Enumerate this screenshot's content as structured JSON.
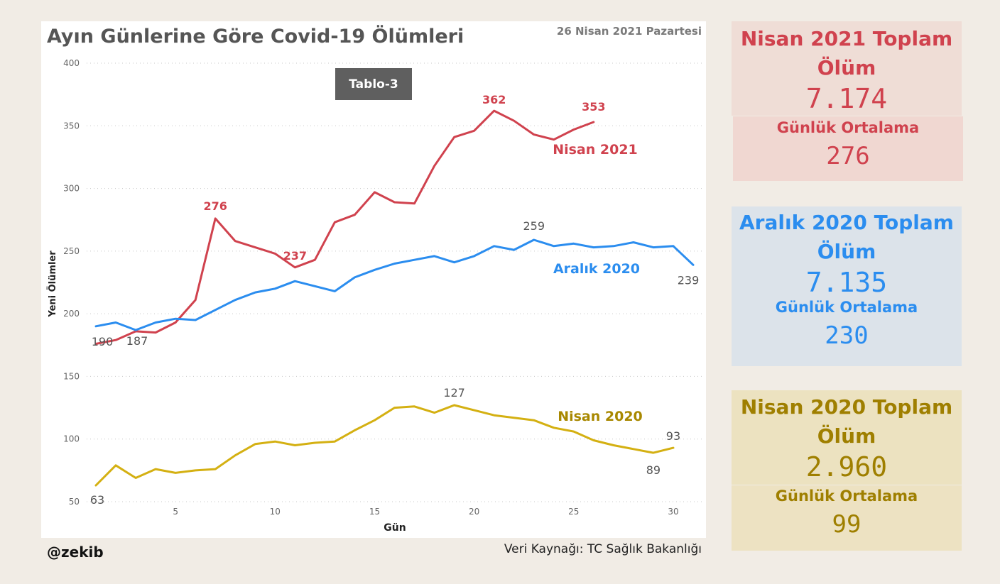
{
  "header": {
    "title": "Ayın Günlerine Göre Covid-19 Ölümleri",
    "date": "26 Nisan 2021 Pazartesi",
    "badge": "Tablo-3"
  },
  "footer": {
    "author": "@zekib",
    "source": "Veri Kaynağı: TC Sağlık Bakanlığı"
  },
  "colors": {
    "nisan2021": "#d0424e",
    "aralik2020": "#2b8def",
    "nisan2020": "#d4b012"
  },
  "cards": [
    {
      "title": "Nisan 2021 Toplam Ölüm",
      "total": "7.174",
      "avg_label": "Günlük Ortalama",
      "avg": "276",
      "color": "#d0424e",
      "bg": "#efddd6"
    },
    {
      "title": "Aralık 2020 Toplam Ölüm",
      "total": "7.135",
      "avg_label": "Günlük Ortalama",
      "avg": "230",
      "color": "#2b8def",
      "bg": "#dde3ea"
    },
    {
      "title": "Nisan 2020 Toplam Ölüm",
      "total": "2.960",
      "avg_label": "Günlük Ortalama",
      "avg": "99",
      "color": "#9f7f00",
      "bg": "#ece2c0"
    }
  ],
  "chart_data": {
    "type": "line",
    "xlabel": "Gün",
    "ylabel": "Yeni Ölümler",
    "xlim": [
      1,
      31
    ],
    "ylim": [
      50,
      400
    ],
    "xticks": [
      5,
      10,
      15,
      20,
      25,
      30
    ],
    "yticks": [
      50,
      100,
      150,
      200,
      250,
      300,
      350,
      400
    ],
    "grid": true,
    "series": [
      {
        "name": "Nisan 2021",
        "color": "#d0424e",
        "x": [
          1,
          2,
          3,
          4,
          5,
          6,
          7,
          8,
          9,
          10,
          11,
          12,
          13,
          14,
          15,
          16,
          17,
          18,
          19,
          20,
          21,
          22,
          23,
          24,
          25,
          26
        ],
        "values": [
          176,
          179,
          186,
          185,
          193,
          211,
          276,
          258,
          253,
          248,
          237,
          243,
          273,
          279,
          297,
          289,
          288,
          318,
          341,
          346,
          362,
          354,
          343,
          339,
          347,
          353
        ],
        "labels": [
          {
            "day": 7,
            "value": "276"
          },
          {
            "day": 11,
            "value": "237"
          },
          {
            "day": 21,
            "value": "362"
          },
          {
            "day": 26,
            "value": "353"
          }
        ]
      },
      {
        "name": "Aralık 2020",
        "color": "#2b8def",
        "x": [
          1,
          2,
          3,
          4,
          5,
          6,
          7,
          8,
          9,
          10,
          11,
          12,
          13,
          14,
          15,
          16,
          17,
          18,
          19,
          20,
          21,
          22,
          23,
          24,
          25,
          26,
          27,
          28,
          29,
          30,
          31
        ],
        "values": [
          190,
          193,
          187,
          193,
          196,
          195,
          203,
          211,
          217,
          220,
          226,
          222,
          218,
          229,
          235,
          240,
          243,
          246,
          241,
          246,
          254,
          251,
          259,
          254,
          256,
          253,
          254,
          257,
          253,
          254,
          239
        ],
        "labels": [
          {
            "day": 1,
            "value": "190"
          },
          {
            "day": 3,
            "value": "187"
          },
          {
            "day": 23,
            "value": "259"
          },
          {
            "day": 31,
            "value": "239"
          }
        ]
      },
      {
        "name": "Nisan 2020",
        "color": "#d4b012",
        "x": [
          1,
          2,
          3,
          4,
          5,
          6,
          7,
          8,
          9,
          10,
          11,
          12,
          13,
          14,
          15,
          16,
          17,
          18,
          19,
          20,
          21,
          22,
          23,
          24,
          25,
          26,
          27,
          28,
          29,
          30
        ],
        "values": [
          63,
          79,
          69,
          76,
          73,
          75,
          76,
          87,
          96,
          98,
          95,
          97,
          98,
          107,
          115,
          125,
          126,
          121,
          127,
          123,
          119,
          117,
          115,
          109,
          106,
          99,
          95,
          92,
          89,
          93
        ],
        "labels": [
          {
            "day": 1,
            "value": "63"
          },
          {
            "day": 19,
            "value": "127"
          },
          {
            "day": 29,
            "value": "89"
          },
          {
            "day": 30,
            "value": "93"
          }
        ]
      }
    ]
  }
}
